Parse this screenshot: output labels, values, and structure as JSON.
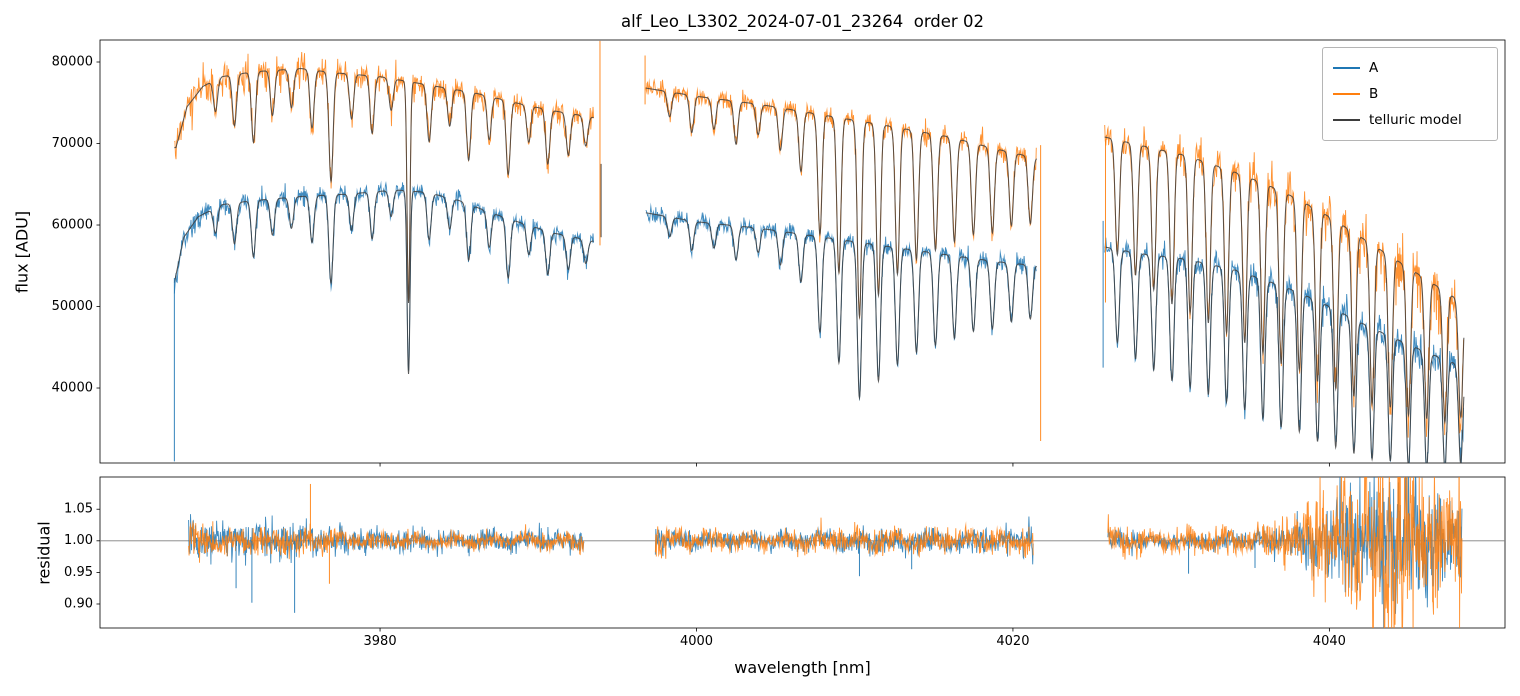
{
  "title": "alf_Leo_L3302_2024-07-01_23264  order 02",
  "chart_data": {
    "type": "line",
    "title": "alf_Leo_L3302_2024-07-01_23264  order 02",
    "xlabel": "wavelength [nm]",
    "xlim": [
      3962.3,
      4051.1
    ],
    "xticks": [
      {
        "v": 3980,
        "label": "3980"
      },
      {
        "v": 4000,
        "label": "4000"
      },
      {
        "v": 4020,
        "label": "4020"
      },
      {
        "v": 4040,
        "label": "4040"
      }
    ],
    "legend": {
      "position": "upper right",
      "items": [
        {
          "label": "A",
          "color": "#1f77b4"
        },
        {
          "label": "B",
          "color": "#ff7f0e"
        },
        {
          "label": "telluric model",
          "color": "#3d3d3d"
        }
      ]
    },
    "flux_panel": {
      "ylabel": "flux [ADU]",
      "ylim": [
        30800,
        82700
      ],
      "yticks": [
        {
          "v": 40000,
          "label": "40000"
        },
        {
          "v": 50000,
          "label": "50000"
        },
        {
          "v": 60000,
          "label": "60000"
        },
        {
          "v": 70000,
          "label": "70000"
        },
        {
          "v": 80000,
          "label": "80000"
        }
      ]
    },
    "residual_panel": {
      "ylabel": "residual",
      "ylim": [
        0.862,
        1.101
      ],
      "yticks": [
        {
          "v": 0.9,
          "label": "0.90"
        },
        {
          "v": 0.95,
          "label": "0.95"
        },
        {
          "v": 1.0,
          "label": "1.00"
        },
        {
          "v": 1.05,
          "label": "1.05"
        }
      ],
      "hline": 1.0
    },
    "segments": [
      {
        "x0": 3967.0,
        "x1": 3993.5,
        "lines": [
          [
            3969.6,
            0.05
          ],
          [
            3970.8,
            0.08
          ],
          [
            3972.0,
            0.11
          ],
          [
            3973.2,
            0.07
          ],
          [
            3974.4,
            0.06
          ],
          [
            3975.7,
            0.09
          ],
          [
            3976.9,
            0.17
          ],
          [
            3978.2,
            0.07
          ],
          [
            3979.5,
            0.09
          ],
          [
            3980.7,
            0.05
          ],
          [
            3981.8,
            0.35,
            0.09
          ],
          [
            3983.1,
            0.09
          ],
          [
            3984.4,
            0.06
          ],
          [
            3985.6,
            0.11
          ],
          [
            3986.9,
            0.07
          ],
          [
            3988.1,
            0.12
          ],
          [
            3989.4,
            0.06
          ],
          [
            3990.6,
            0.09
          ],
          [
            3991.9,
            0.07
          ],
          [
            3993.0,
            0.05
          ]
        ]
      },
      {
        "x0": 3996.8,
        "x1": 4021.5,
        "lines": [
          [
            3998.3,
            0.04
          ],
          [
            3999.7,
            0.06
          ],
          [
            4001.1,
            0.05
          ],
          [
            4002.5,
            0.07
          ],
          [
            4003.9,
            0.05
          ],
          [
            4005.3,
            0.07
          ],
          [
            4006.6,
            0.1
          ],
          [
            4007.8,
            0.2
          ],
          [
            4009.0,
            0.26
          ],
          [
            4010.3,
            0.33
          ],
          [
            4011.5,
            0.29
          ],
          [
            4012.7,
            0.25
          ],
          [
            4013.9,
            0.22
          ],
          [
            4015.1,
            0.2
          ],
          [
            4016.3,
            0.18
          ],
          [
            4017.5,
            0.16
          ],
          [
            4018.7,
            0.15
          ],
          [
            4019.9,
            0.13
          ],
          [
            4021.1,
            0.12
          ]
        ]
      },
      {
        "x0": 4025.8,
        "x1": 4048.5,
        "lines": [
          [
            4026.6,
            0.2
          ],
          [
            4027.75,
            0.23
          ],
          [
            4028.9,
            0.25
          ],
          [
            4030.05,
            0.27
          ],
          [
            4031.2,
            0.28
          ],
          [
            4032.35,
            0.29
          ],
          [
            4033.5,
            0.3
          ],
          [
            4034.65,
            0.31
          ],
          [
            4035.8,
            0.32
          ],
          [
            4036.95,
            0.33
          ],
          [
            4038.1,
            0.33
          ],
          [
            4039.25,
            0.34
          ],
          [
            4040.4,
            0.34
          ],
          [
            4041.55,
            0.34
          ],
          [
            4042.7,
            0.34
          ],
          [
            4043.85,
            0.33
          ],
          [
            4045.0,
            0.33
          ],
          [
            4046.15,
            0.32
          ],
          [
            4047.3,
            0.31
          ],
          [
            4048.3,
            0.28
          ]
        ]
      }
    ],
    "series": {
      "A": {
        "color": "#1f77b4",
        "seed": 7,
        "noise": [
          [
            700,
            500
          ],
          [
            450,
            550
          ],
          [
            600,
            1100
          ]
        ],
        "envelope": [
          [
            3966.9,
            52000
          ],
          [
            3967.6,
            58500
          ],
          [
            3968.5,
            61000
          ],
          [
            3970,
            62500
          ],
          [
            3972,
            63000
          ],
          [
            3975,
            63500
          ],
          [
            3978,
            63800
          ],
          [
            3981,
            64300
          ],
          [
            3983,
            64000
          ],
          [
            3985,
            63000
          ],
          [
            3987,
            61500
          ],
          [
            3989,
            60200
          ],
          [
            3991,
            59000
          ],
          [
            3993.5,
            58000
          ],
          [
            3996.8,
            61500
          ],
          [
            4000,
            60400
          ],
          [
            4004,
            59600
          ],
          [
            4008,
            58500
          ],
          [
            4012,
            57400
          ],
          [
            4016,
            56300
          ],
          [
            4019,
            55500
          ],
          [
            4021.5,
            55000
          ],
          [
            4025.8,
            57300
          ],
          [
            4028,
            56500
          ],
          [
            4031,
            55800
          ],
          [
            4034,
            54500
          ],
          [
            4036,
            53200
          ],
          [
            4038,
            51800
          ],
          [
            4040,
            50000
          ],
          [
            4042,
            48000
          ],
          [
            4044,
            46200
          ],
          [
            4046,
            44500
          ],
          [
            4048.6,
            42500
          ]
        ]
      },
      "B": {
        "color": "#ff7f0e",
        "seed": 13,
        "noise": [
          [
            1000,
            700
          ],
          [
            550,
            700
          ],
          [
            800,
            2200
          ]
        ],
        "envelope": [
          [
            3967.1,
            69500
          ],
          [
            3967.8,
            74500
          ],
          [
            3968.8,
            77000
          ],
          [
            3970,
            78200
          ],
          [
            3972,
            78800
          ],
          [
            3975,
            79200
          ],
          [
            3977,
            78700
          ],
          [
            3980,
            78200
          ],
          [
            3983,
            77200
          ],
          [
            3986,
            76200
          ],
          [
            3989,
            74800
          ],
          [
            3991,
            74000
          ],
          [
            3993.5,
            73200
          ],
          [
            3996.8,
            76800
          ],
          [
            4000,
            75800
          ],
          [
            4004,
            74800
          ],
          [
            4008,
            73500
          ],
          [
            4012,
            72200
          ],
          [
            4016,
            70800
          ],
          [
            4019,
            69300
          ],
          [
            4021.5,
            68200
          ],
          [
            4025.8,
            70800
          ],
          [
            4028,
            69800
          ],
          [
            4031,
            68500
          ],
          [
            4034,
            66500
          ],
          [
            4036,
            65000
          ],
          [
            4038,
            63200
          ],
          [
            4040,
            61000
          ],
          [
            4042,
            58500
          ],
          [
            4044,
            56000
          ],
          [
            4046,
            53500
          ],
          [
            4048.4,
            50500
          ]
        ]
      },
      "model": {
        "color": "#3d3d3d"
      }
    },
    "spikes": [
      {
        "x": 3967.0,
        "y0": 31000,
        "y1": 53500,
        "series": "A"
      },
      {
        "x": 3993.9,
        "y0": 57500,
        "y1": 82600,
        "series": "B"
      },
      {
        "x": 3993.97,
        "y0": 58500,
        "y1": 67500,
        "series": "model"
      },
      {
        "x": 3996.75,
        "y0": 74800,
        "y1": 80800,
        "series": "B"
      },
      {
        "x": 4021.75,
        "y0": 33500,
        "y1": 69800,
        "series": "B"
      },
      {
        "x": 4025.7,
        "y0": 42500,
        "y1": 60500,
        "series": "A"
      },
      {
        "x": 4025.85,
        "y0": 50500,
        "y1": 70500,
        "series": "B"
      }
    ],
    "residual": {
      "segments": [
        {
          "x0": 3967.9,
          "x1": 3992.9,
          "sigma": [
            [
              3967.9,
              0.016
            ],
            [
              3970,
              0.012
            ],
            [
              3974,
              0.013
            ],
            [
              3977,
              0.009
            ],
            [
              3980,
              0.007
            ],
            [
              3984,
              0.006
            ],
            [
              3988,
              0.008
            ],
            [
              3992.9,
              0.008
            ]
          ]
        },
        {
          "x0": 3997.4,
          "x1": 4021.3,
          "sigma": [
            [
              3997.4,
              0.012
            ],
            [
              4000,
              0.008
            ],
            [
              4004,
              0.007
            ],
            [
              4008,
              0.009
            ],
            [
              4012,
              0.01
            ],
            [
              4016,
              0.009
            ],
            [
              4019,
              0.01
            ],
            [
              4021.3,
              0.011
            ]
          ]
        },
        {
          "x0": 4026.0,
          "x1": 4048.4,
          "sigma": [
            [
              4026,
              0.011
            ],
            [
              4029,
              0.007
            ],
            [
              4032,
              0.008
            ],
            [
              4035,
              0.01
            ],
            [
              4037,
              0.014
            ],
            [
              4039,
              0.03
            ],
            [
              4041,
              0.05
            ],
            [
              4043,
              0.06
            ],
            [
              4045,
              0.062
            ],
            [
              4047,
              0.058
            ],
            [
              4048.4,
              0.05
            ]
          ]
        }
      ],
      "color_scale": {
        "A": [
          1.25,
          1.0,
          0.8
        ],
        "B": [
          0.9,
          1.05,
          1.2
        ]
      },
      "spikes": [
        {
          "x": 3970.9,
          "y": 0.925,
          "series": "A"
        },
        {
          "x": 3971.9,
          "y": 0.902,
          "series": "A"
        },
        {
          "x": 3974.6,
          "y": 0.886,
          "series": "A"
        },
        {
          "x": 3975.6,
          "y": 1.09,
          "series": "B"
        },
        {
          "x": 3976.8,
          "y": 0.932,
          "series": "B"
        },
        {
          "x": 4010.3,
          "y": 0.944,
          "series": "A"
        },
        {
          "x": 4013.6,
          "y": 0.955,
          "series": "A"
        },
        {
          "x": 4031.1,
          "y": 0.948,
          "series": "A"
        },
        {
          "x": 4035.3,
          "y": 0.957,
          "series": "A"
        }
      ]
    }
  }
}
